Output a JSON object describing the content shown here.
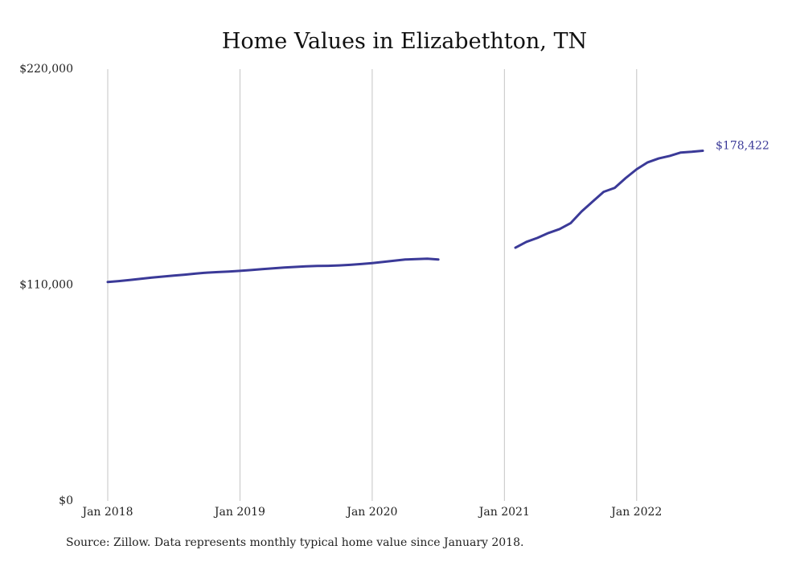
{
  "chart_data": {
    "type": "line",
    "title": "Home Values in Elizabethton, TN",
    "xlabel": "",
    "ylabel": "",
    "ylim": [
      0,
      220000
    ],
    "y_ticks": [
      {
        "value": 0,
        "label": "$0"
      },
      {
        "value": 110000,
        "label": "$110,000"
      },
      {
        "value": 220000,
        "label": "$220,000"
      }
    ],
    "x_range": [
      "2018-01",
      "2022-07"
    ],
    "x_ticks": [
      {
        "date": "2018-01",
        "label": "Jan 2018"
      },
      {
        "date": "2019-01",
        "label": "Jan 2019"
      },
      {
        "date": "2020-01",
        "label": "Jan 2020"
      },
      {
        "date": "2021-01",
        "label": "Jan 2021"
      },
      {
        "date": "2022-01",
        "label": "Jan 2022"
      }
    ],
    "grid": "vertical",
    "line_color": "#3b3a98",
    "segments": [
      {
        "x": [
          "2018-01",
          "2018-02",
          "2018-03",
          "2018-04",
          "2018-05",
          "2018-06",
          "2018-07",
          "2018-08",
          "2018-09",
          "2018-10",
          "2018-11",
          "2018-12",
          "2019-01",
          "2019-02",
          "2019-03",
          "2019-04",
          "2019-05",
          "2019-06",
          "2019-07",
          "2019-08",
          "2019-09",
          "2019-10",
          "2019-11",
          "2019-12",
          "2020-01",
          "2020-02",
          "2020-03",
          "2020-04",
          "2020-05",
          "2020-06",
          "2020-07"
        ],
        "y": [
          111500,
          112000,
          112600,
          113200,
          113800,
          114300,
          114800,
          115300,
          115800,
          116300,
          116600,
          116900,
          117200,
          117600,
          118100,
          118500,
          118900,
          119200,
          119500,
          119700,
          119800,
          120000,
          120300,
          120700,
          121200,
          121800,
          122400,
          123000,
          123200,
          123400,
          123000
        ]
      },
      {
        "x": [
          "2021-02",
          "2021-03",
          "2021-04",
          "2021-05",
          "2021-06",
          "2021-07",
          "2021-08",
          "2021-09",
          "2021-10",
          "2021-11",
          "2021-12",
          "2022-01",
          "2022-02",
          "2022-03",
          "2022-04",
          "2022-05",
          "2022-06",
          "2022-07"
        ],
        "y": [
          129000,
          132000,
          134000,
          136500,
          138500,
          141500,
          147500,
          152500,
          157500,
          159500,
          164500,
          169000,
          172500,
          174500,
          175800,
          177500,
          177900,
          178422
        ]
      }
    ],
    "end_label": "$178,422"
  },
  "source_note": "Source: Zillow. Data represents monthly typical home value since January 2018."
}
